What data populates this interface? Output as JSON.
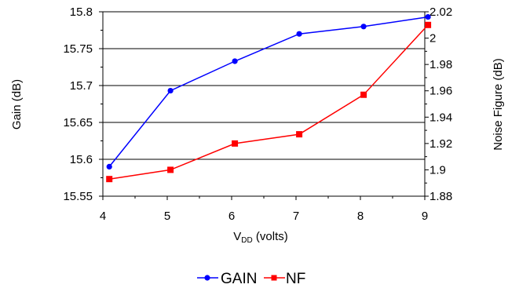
{
  "chart_data": {
    "type": "line",
    "x": [
      4.1,
      5.05,
      6.05,
      7.05,
      8.05,
      9.05
    ],
    "x_ticks": [
      "4",
      "5",
      "6",
      "7",
      "8",
      "9"
    ],
    "xlim": [
      4,
      9
    ],
    "xlabel": {
      "main": "V",
      "sub": "DD",
      "rest": " (volts)"
    },
    "ylabel_left": "Gain (dB)",
    "ylabel_right": "Noise Figure (dB)",
    "ylim_left": [
      15.55,
      15.8
    ],
    "ylim_right": [
      1.88,
      2.02
    ],
    "y_ticks_left": [
      "15.55",
      "15.6",
      "15.65",
      "15.7",
      "15.75",
      "15.8"
    ],
    "y_ticks_right": [
      "1.88",
      "1.9",
      "1.92",
      "1.94",
      "1.96",
      "1.98",
      "2",
      "2.02"
    ],
    "grid": "horizontal",
    "legend_position": "bottom-center",
    "series": [
      {
        "name": "GAIN",
        "axis": "left",
        "color": "#0000ff",
        "marker": "circle",
        "values": [
          15.59,
          15.693,
          15.733,
          15.77,
          15.78,
          15.793
        ]
      },
      {
        "name": "NF",
        "axis": "right",
        "color": "#ff0000",
        "marker": "square",
        "values": [
          1.893,
          1.9,
          1.92,
          1.927,
          1.957,
          2.01
        ]
      }
    ]
  }
}
